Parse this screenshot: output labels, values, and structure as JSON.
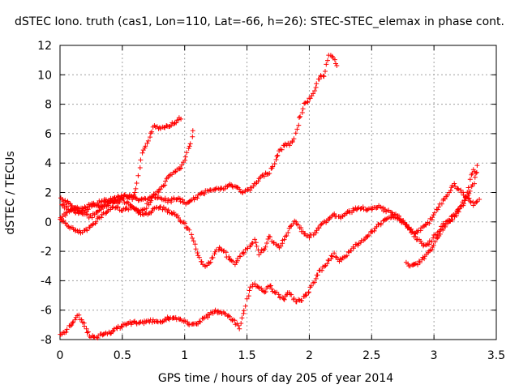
{
  "chart_data": {
    "type": "scatter",
    "title": "dSTEC Iono. truth (cas1, Lon=110, Lat=-66, h=26): STEC-STEC_elemax in phase cont.",
    "xlabel": "GPS time / hours of day 205 of year 2014",
    "ylabel": "dSTEC  / TECUs",
    "xlim": [
      0,
      3.5
    ],
    "ylim": [
      -8,
      12
    ],
    "xticks": [
      "0",
      "0.5",
      "1",
      "1.5",
      "2",
      "2.5",
      "3",
      "3.5"
    ],
    "yticks": [
      "-8",
      "-6",
      "-4",
      "-2",
      "0",
      "2",
      "4",
      "6",
      "8",
      "10",
      "12"
    ],
    "grid": true,
    "marker": "plus",
    "color": "#ff0000",
    "series": [
      {
        "values": [
          [
            0.0,
            1.6
          ],
          [
            0.03,
            1.5
          ],
          [
            0.06,
            1.3
          ],
          [
            0.1,
            1.0
          ],
          [
            0.14,
            0.8
          ],
          [
            0.18,
            0.9
          ],
          [
            0.22,
            1.1
          ],
          [
            0.26,
            1.2
          ],
          [
            0.3,
            1.1
          ],
          [
            0.34,
            1.0
          ],
          [
            0.38,
            1.2
          ],
          [
            0.42,
            1.4
          ],
          [
            0.46,
            1.5
          ],
          [
            0.5,
            1.7
          ],
          [
            0.54,
            1.8
          ],
          [
            0.58,
            1.6
          ],
          [
            0.6,
            1.9
          ],
          [
            0.62,
            2.6
          ],
          [
            0.64,
            3.6
          ],
          [
            0.66,
            4.6
          ],
          [
            0.68,
            5.0
          ],
          [
            0.7,
            5.4
          ],
          [
            0.72,
            5.8
          ],
          [
            0.74,
            6.2
          ],
          [
            0.76,
            6.5
          ],
          [
            0.8,
            6.4
          ],
          [
            0.84,
            6.5
          ],
          [
            0.88,
            6.6
          ],
          [
            0.92,
            6.7
          ],
          [
            0.95,
            7.0
          ],
          [
            0.97,
            7.1
          ]
        ]
      },
      {
        "values": [
          [
            0.0,
            0.1
          ],
          [
            0.03,
            0.0
          ],
          [
            0.06,
            -0.2
          ],
          [
            0.09,
            -0.4
          ],
          [
            0.12,
            -0.6
          ],
          [
            0.15,
            -0.7
          ],
          [
            0.18,
            -0.7
          ],
          [
            0.21,
            -0.6
          ],
          [
            0.24,
            -0.4
          ],
          [
            0.27,
            -0.1
          ],
          [
            0.3,
            0.2
          ],
          [
            0.33,
            0.4
          ],
          [
            0.36,
            0.6
          ],
          [
            0.39,
            0.8
          ],
          [
            0.42,
            1.0
          ],
          [
            0.45,
            1.0
          ],
          [
            0.48,
            0.9
          ],
          [
            0.51,
            0.8
          ],
          [
            0.54,
            0.9
          ],
          [
            0.57,
            1.0
          ],
          [
            0.6,
            0.9
          ],
          [
            0.63,
            0.7
          ],
          [
            0.66,
            0.7
          ],
          [
            0.69,
            1.0
          ],
          [
            0.72,
            1.4
          ],
          [
            0.75,
            1.8
          ],
          [
            0.78,
            2.0
          ],
          [
            0.81,
            2.2
          ],
          [
            0.84,
            2.6
          ],
          [
            0.87,
            3.0
          ],
          [
            0.9,
            3.3
          ],
          [
            0.93,
            3.5
          ],
          [
            0.96,
            3.6
          ],
          [
            0.99,
            4.0
          ],
          [
            1.02,
            4.7
          ],
          [
            1.05,
            5.3
          ],
          [
            1.07,
            6.2
          ]
        ]
      },
      {
        "values": [
          [
            0.0,
            0.3
          ],
          [
            0.04,
            0.5
          ],
          [
            0.08,
            0.8
          ],
          [
            0.12,
            1.0
          ],
          [
            0.16,
            0.8
          ],
          [
            0.2,
            0.5
          ],
          [
            0.24,
            0.3
          ],
          [
            0.28,
            0.5
          ],
          [
            0.32,
            0.8
          ],
          [
            0.36,
            1.2
          ],
          [
            0.4,
            1.5
          ],
          [
            0.44,
            1.6
          ],
          [
            0.48,
            1.7
          ],
          [
            0.52,
            1.8
          ],
          [
            0.56,
            1.7
          ],
          [
            0.6,
            1.6
          ],
          [
            0.64,
            1.4
          ],
          [
            0.68,
            1.6
          ],
          [
            0.72,
            1.6
          ],
          [
            0.76,
            1.7
          ],
          [
            0.8,
            1.7
          ],
          [
            0.84,
            1.5
          ],
          [
            0.88,
            1.4
          ],
          [
            0.92,
            1.6
          ],
          [
            0.96,
            1.5
          ],
          [
            1.0,
            1.3
          ],
          [
            1.04,
            1.3
          ],
          [
            1.08,
            1.6
          ],
          [
            1.12,
            1.8
          ],
          [
            1.16,
            2.0
          ],
          [
            1.2,
            2.2
          ],
          [
            1.24,
            2.3
          ],
          [
            1.28,
            2.2
          ],
          [
            1.32,
            2.3
          ],
          [
            1.36,
            2.5
          ],
          [
            1.4,
            2.4
          ],
          [
            1.44,
            2.2
          ],
          [
            1.48,
            2.0
          ],
          [
            1.52,
            2.2
          ],
          [
            1.56,
            2.5
          ],
          [
            1.6,
            2.9
          ],
          [
            1.64,
            3.2
          ],
          [
            1.68,
            3.4
          ],
          [
            1.72,
            4.0
          ],
          [
            1.76,
            4.8
          ],
          [
            1.8,
            5.2
          ],
          [
            1.84,
            5.3
          ],
          [
            1.88,
            5.6
          ],
          [
            1.92,
            7.0
          ],
          [
            1.96,
            8.0
          ],
          [
            2.0,
            8.3
          ],
          [
            2.04,
            9.0
          ],
          [
            2.08,
            9.8
          ],
          [
            2.12,
            10.0
          ],
          [
            2.16,
            11.3
          ],
          [
            2.2,
            11.0
          ],
          [
            2.22,
            10.7
          ]
        ]
      },
      {
        "values": [
          [
            0.0,
            1.2
          ],
          [
            0.05,
            1.0
          ],
          [
            0.1,
            0.8
          ],
          [
            0.15,
            0.6
          ],
          [
            0.2,
            0.7
          ],
          [
            0.25,
            1.0
          ],
          [
            0.3,
            1.3
          ],
          [
            0.35,
            1.5
          ],
          [
            0.4,
            1.4
          ],
          [
            0.45,
            1.3
          ],
          [
            0.5,
            1.5
          ],
          [
            0.55,
            1.2
          ],
          [
            0.6,
            0.8
          ],
          [
            0.65,
            0.6
          ],
          [
            0.7,
            0.5
          ],
          [
            0.75,
            0.8
          ],
          [
            0.8,
            1.0
          ],
          [
            0.85,
            0.8
          ],
          [
            0.9,
            0.6
          ],
          [
            0.95,
            0.3
          ],
          [
            1.0,
            -0.2
          ],
          [
            1.04,
            -0.6
          ],
          [
            1.08,
            -1.5
          ],
          [
            1.12,
            -2.5
          ],
          [
            1.16,
            -3.0
          ],
          [
            1.2,
            -2.8
          ],
          [
            1.24,
            -2.2
          ],
          [
            1.28,
            -1.8
          ],
          [
            1.32,
            -2.0
          ],
          [
            1.36,
            -2.6
          ],
          [
            1.4,
            -2.8
          ],
          [
            1.44,
            -2.4
          ],
          [
            1.48,
            -2.0
          ],
          [
            1.52,
            -1.8
          ],
          [
            1.56,
            -1.2
          ],
          [
            1.6,
            -2.2
          ],
          [
            1.64,
            -1.8
          ],
          [
            1.68,
            -1.0
          ],
          [
            1.72,
            -1.5
          ],
          [
            1.76,
            -1.8
          ],
          [
            1.8,
            -1.2
          ],
          [
            1.84,
            -0.5
          ],
          [
            1.88,
            0.0
          ],
          [
            1.92,
            -0.3
          ],
          [
            1.96,
            -0.8
          ],
          [
            2.0,
            -1.0
          ],
          [
            2.04,
            -0.8
          ],
          [
            2.08,
            -0.4
          ],
          [
            2.12,
            0.0
          ],
          [
            2.16,
            0.2
          ],
          [
            2.2,
            0.5
          ],
          [
            2.24,
            0.3
          ],
          [
            2.28,
            0.4
          ],
          [
            2.32,
            0.7
          ],
          [
            2.36,
            0.8
          ],
          [
            2.4,
            1.0
          ],
          [
            2.44,
            0.9
          ],
          [
            2.48,
            0.8
          ],
          [
            2.52,
            0.9
          ],
          [
            2.56,
            1.0
          ],
          [
            2.6,
            0.8
          ],
          [
            2.64,
            0.7
          ],
          [
            2.68,
            0.5
          ],
          [
            2.72,
            0.3
          ],
          [
            2.76,
            0.0
          ],
          [
            2.8,
            -0.4
          ],
          [
            2.84,
            -0.8
          ],
          [
            2.88,
            -0.6
          ],
          [
            2.92,
            -0.3
          ],
          [
            2.96,
            0.0
          ],
          [
            3.0,
            0.5
          ],
          [
            3.04,
            1.0
          ],
          [
            3.08,
            1.5
          ],
          [
            3.12,
            2.0
          ],
          [
            3.16,
            2.5
          ],
          [
            3.2,
            2.2
          ],
          [
            3.24,
            1.8
          ],
          [
            3.28,
            1.6
          ],
          [
            3.32,
            1.2
          ],
          [
            3.36,
            1.6
          ]
        ]
      },
      {
        "values": [
          [
            0.0,
            -7.7
          ],
          [
            0.03,
            -7.6
          ],
          [
            0.06,
            -7.3
          ],
          [
            0.09,
            -6.9
          ],
          [
            0.12,
            -6.6
          ],
          [
            0.15,
            -6.4
          ],
          [
            0.18,
            -6.8
          ],
          [
            0.21,
            -7.3
          ],
          [
            0.24,
            -7.7
          ],
          [
            0.27,
            -7.9
          ],
          [
            0.3,
            -7.8
          ],
          [
            0.35,
            -7.6
          ],
          [
            0.4,
            -7.5
          ],
          [
            0.45,
            -7.3
          ],
          [
            0.5,
            -7.1
          ],
          [
            0.55,
            -6.9
          ],
          [
            0.6,
            -6.8
          ],
          [
            0.65,
            -6.9
          ],
          [
            0.7,
            -6.8
          ],
          [
            0.75,
            -6.7
          ],
          [
            0.8,
            -6.8
          ],
          [
            0.85,
            -6.6
          ],
          [
            0.9,
            -6.5
          ],
          [
            0.95,
            -6.6
          ],
          [
            1.0,
            -6.8
          ],
          [
            1.05,
            -7.0
          ],
          [
            1.1,
            -6.9
          ],
          [
            1.15,
            -6.6
          ],
          [
            1.2,
            -6.3
          ],
          [
            1.25,
            -6.1
          ],
          [
            1.3,
            -6.2
          ],
          [
            1.35,
            -6.4
          ],
          [
            1.4,
            -6.8
          ],
          [
            1.44,
            -7.2
          ],
          [
            1.48,
            -6.0
          ],
          [
            1.52,
            -4.6
          ],
          [
            1.56,
            -4.2
          ],
          [
            1.6,
            -4.5
          ],
          [
            1.64,
            -4.8
          ],
          [
            1.68,
            -4.3
          ],
          [
            1.72,
            -4.8
          ],
          [
            1.76,
            -5.0
          ],
          [
            1.8,
            -5.2
          ],
          [
            1.84,
            -4.8
          ],
          [
            1.88,
            -5.3
          ],
          [
            1.92,
            -5.4
          ],
          [
            1.96,
            -5.1
          ],
          [
            2.0,
            -4.7
          ],
          [
            2.04,
            -4.0
          ],
          [
            2.08,
            -3.4
          ],
          [
            2.12,
            -3.0
          ],
          [
            2.16,
            -2.6
          ],
          [
            2.2,
            -2.2
          ],
          [
            2.24,
            -2.6
          ],
          [
            2.28,
            -2.4
          ],
          [
            2.32,
            -2.0
          ],
          [
            2.36,
            -1.7
          ],
          [
            2.4,
            -1.4
          ],
          [
            2.44,
            -1.2
          ],
          [
            2.48,
            -0.8
          ],
          [
            2.52,
            -0.5
          ],
          [
            2.56,
            -0.2
          ],
          [
            2.6,
            0.1
          ],
          [
            2.64,
            0.3
          ],
          [
            2.68,
            0.4
          ],
          [
            2.72,
            0.2
          ],
          [
            2.76,
            -0.1
          ],
          [
            2.8,
            -0.4
          ],
          [
            2.84,
            -0.9
          ],
          [
            2.88,
            -1.3
          ],
          [
            2.92,
            -1.6
          ],
          [
            2.96,
            -1.5
          ],
          [
            3.0,
            -1.0
          ],
          [
            3.04,
            -0.6
          ],
          [
            3.08,
            -0.2
          ],
          [
            3.12,
            0.1
          ],
          [
            3.16,
            0.3
          ],
          [
            3.2,
            0.7
          ],
          [
            3.24,
            1.3
          ],
          [
            3.28,
            2.0
          ],
          [
            3.32,
            2.6
          ],
          [
            3.35,
            3.9
          ]
        ]
      },
      {
        "values": [
          [
            2.78,
            -2.8
          ],
          [
            2.82,
            -3.0
          ],
          [
            2.86,
            -2.9
          ],
          [
            2.9,
            -2.6
          ],
          [
            2.94,
            -2.2
          ],
          [
            2.98,
            -1.8
          ],
          [
            3.02,
            -1.2
          ],
          [
            3.06,
            -0.6
          ],
          [
            3.1,
            -0.2
          ],
          [
            3.14,
            0.3
          ],
          [
            3.18,
            0.7
          ],
          [
            3.22,
            1.2
          ],
          [
            3.26,
            1.8
          ],
          [
            3.28,
            2.4
          ],
          [
            3.3,
            3.2
          ],
          [
            3.32,
            3.6
          ],
          [
            3.34,
            3.4
          ]
        ]
      }
    ]
  }
}
